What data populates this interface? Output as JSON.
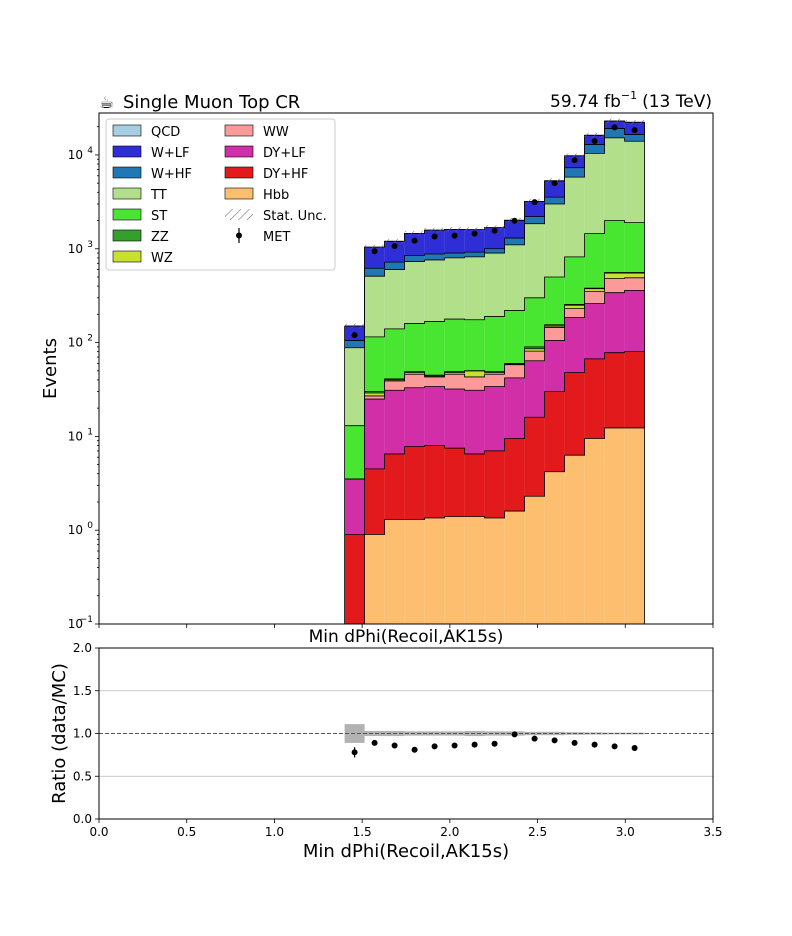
{
  "header": {
    "title_icon": "coffee-icon",
    "title_glyph": "☕",
    "title": "Single Muon Top CR",
    "lumi_value": "59.74 fb",
    "lumi_exponent": "−1",
    "lumi_energy": "(13 TeV)"
  },
  "chart_data": [
    {
      "type": "bar",
      "subtype": "stacked-histogram",
      "x_axis": {
        "label": "Min dPhi(Recoil,AK15s)",
        "xlim": [
          0,
          3.5
        ]
      },
      "y_axis": {
        "label": "Events",
        "scale": "log",
        "ylim": [
          0.1,
          28000
        ],
        "tick_labels": [
          {
            "base": "10",
            "exp": "−1"
          },
          {
            "base": "10",
            "exp": "0"
          },
          {
            "base": "10",
            "exp": "1"
          },
          {
            "base": "10",
            "exp": "2"
          },
          {
            "base": "10",
            "exp": "3"
          },
          {
            "base": "10",
            "exp": "4"
          }
        ]
      },
      "legend_position": "top-left",
      "bins": [
        [
          1.4,
          1.514
        ],
        [
          1.514,
          1.628
        ],
        [
          1.628,
          1.742
        ],
        [
          1.742,
          1.856
        ],
        [
          1.856,
          1.97
        ],
        [
          1.97,
          2.084
        ],
        [
          2.084,
          2.198
        ],
        [
          2.198,
          2.312
        ],
        [
          2.312,
          2.426
        ],
        [
          2.426,
          2.54
        ],
        [
          2.54,
          2.654
        ],
        [
          2.654,
          2.768
        ],
        [
          2.768,
          2.882
        ],
        [
          2.882,
          2.996
        ],
        [
          2.996,
          3.11
        ]
      ],
      "stack_order": [
        "Hbb",
        "DY+HF",
        "DY+LF",
        "WW",
        "WZ",
        "ZZ",
        "ST",
        "TT",
        "W+HF",
        "W+LF",
        "QCD"
      ],
      "cumulative_tops": {
        "Hbb": [
          0,
          0.9,
          1.3,
          1.3,
          1.35,
          1.4,
          1.4,
          1.35,
          1.6,
          2.3,
          4.2,
          6.3,
          9.5,
          12.3,
          12.3
        ],
        "DY+HF": [
          0.9,
          4.5,
          6.5,
          7.8,
          8.0,
          7.5,
          6.5,
          7.0,
          9.5,
          16,
          30,
          48,
          67,
          78,
          80
        ],
        "DY+LF": [
          3.5,
          25,
          31,
          33,
          34,
          32,
          31,
          34,
          42,
          64,
          105,
          185,
          260,
          340,
          360
        ],
        "WW": [
          3.5,
          27,
          39,
          46,
          43,
          46,
          43,
          46,
          58,
          81,
          145,
          230,
          350,
          480,
          490
        ],
        "WZ": [
          3.5,
          29,
          40,
          48,
          44,
          48,
          50,
          48,
          59,
          86,
          150,
          250,
          375,
          550,
          550
        ],
        "ZZ": [
          3.5,
          30,
          41,
          49,
          45,
          49,
          50,
          49,
          60,
          90,
          155,
          255,
          380,
          560,
          560
        ],
        "ST": [
          13,
          115,
          140,
          160,
          168,
          178,
          175,
          190,
          220,
          300,
          500,
          820,
          1450,
          2000,
          1900
        ],
        "TT": [
          88,
          510,
          600,
          730,
          760,
          800,
          820,
          900,
          1100,
          1850,
          3000,
          5800,
          10400,
          15200,
          14000
        ],
        "W+HF": [
          105,
          620,
          720,
          850,
          880,
          900,
          920,
          1000,
          1300,
          2200,
          3550,
          7300,
          12900,
          19100,
          16500
        ],
        "W+LF": [
          150,
          1040,
          1200,
          1460,
          1580,
          1610,
          1600,
          1680,
          2010,
          3200,
          5300,
          9800,
          16200,
          23000,
          22300
        ],
        "QCD": [
          150,
          1040,
          1200,
          1460,
          1580,
          1610,
          1600,
          1680,
          2010,
          3200,
          5300,
          9800,
          16200,
          23000,
          22300
        ]
      },
      "data_points": [
        120,
        940,
        1070,
        1220,
        1350,
        1380,
        1450,
        1560,
        1990,
        3140,
        5000,
        8800,
        14100,
        19700,
        18400
      ],
      "series_styles": [
        {
          "name": "QCD",
          "color": "#a6cee3",
          "legend_col": 0
        },
        {
          "name": "W+LF",
          "color": "#2f2ed6",
          "legend_col": 0
        },
        {
          "name": "W+HF",
          "color": "#1f78b4",
          "legend_col": 0
        },
        {
          "name": "TT",
          "color": "#b2df8a",
          "legend_col": 0
        },
        {
          "name": "ST",
          "color": "#48e630",
          "legend_col": 0
        },
        {
          "name": "ZZ",
          "color": "#33a02c",
          "legend_col": 0
        },
        {
          "name": "WZ",
          "color": "#c9e030",
          "legend_col": 0
        },
        {
          "name": "WW",
          "color": "#fb9a99",
          "legend_col": 1
        },
        {
          "name": "DY+LF",
          "color": "#d12ea8",
          "legend_col": 1
        },
        {
          "name": "DY+HF",
          "color": "#e31a1c",
          "legend_col": 1
        },
        {
          "name": "Hbb",
          "color": "#fdbf6f",
          "legend_col": 1
        }
      ],
      "extra_legend": [
        {
          "name": "Stat. Unc.",
          "kind": "hatch",
          "legend_col": 1
        },
        {
          "name": "MET",
          "kind": "marker",
          "legend_col": 1
        }
      ]
    },
    {
      "type": "scatter",
      "subtype": "ratio",
      "x_axis": {
        "label": "Min dPhi(Recoil,AK15s)",
        "xlim": [
          0,
          3.5
        ],
        "ticks": [
          0.0,
          0.5,
          1.0,
          1.5,
          2.0,
          2.5,
          3.0,
          3.5
        ],
        "tick_labels": [
          "0.0",
          "0.5",
          "1.0",
          "1.5",
          "2.0",
          "2.5",
          "3.0",
          "3.5"
        ]
      },
      "y_axis": {
        "label": "Ratio (data/MC)",
        "ylim": [
          0,
          2
        ],
        "ticks": [
          0.0,
          0.5,
          1.0,
          1.5,
          2.0
        ],
        "tick_labels": [
          "0.0",
          "0.5",
          "1.0",
          "1.5",
          "2.0"
        ]
      },
      "grid": "horizontal",
      "reference_line": 1.0,
      "ratio_values": [
        0.78,
        0.89,
        0.86,
        0.81,
        0.85,
        0.86,
        0.87,
        0.88,
        0.99,
        0.94,
        0.92,
        0.89,
        0.87,
        0.85,
        0.83
      ],
      "ratio_errors": [
        0.06,
        0.015,
        0.015,
        0.012,
        0.012,
        0.012,
        0.012,
        0.012,
        0.012,
        0.01,
        0.008,
        0.006,
        0.005,
        0.004,
        0.004
      ],
      "mc_unc_half_height": [
        0.11,
        0.03,
        0.03,
        0.025,
        0.025,
        0.025,
        0.03,
        0.025,
        0.025,
        0.02,
        0.02,
        0.015,
        0.012,
        0.01,
        0.01
      ]
    }
  ]
}
